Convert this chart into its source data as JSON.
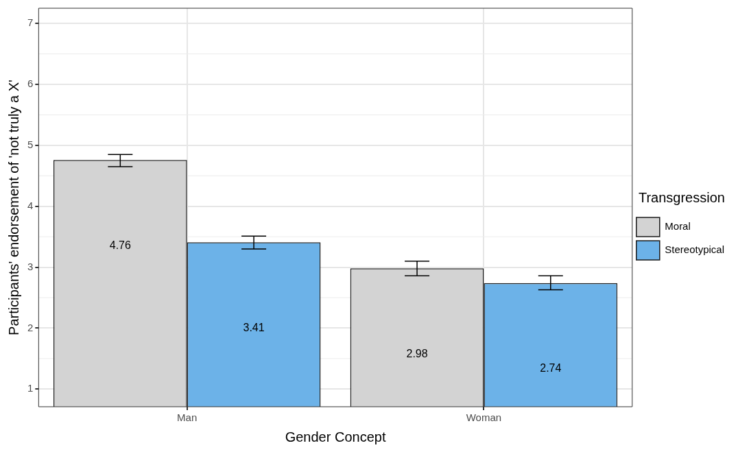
{
  "chart_data": {
    "type": "bar",
    "xlabel": "Gender Concept",
    "ylabel": "Participants' endorsement of 'not truly a X'",
    "legend_title": "Transgression",
    "categories": [
      "Man",
      "Woman"
    ],
    "series": [
      {
        "name": "Moral",
        "color": "#d3d3d3",
        "values": [
          4.76,
          2.98
        ],
        "errors": [
          [
            4.65,
            4.85
          ],
          [
            2.86,
            3.1
          ]
        ]
      },
      {
        "name": "Stereotypical",
        "color": "#6cb2e8",
        "values": [
          3.41,
          2.74
        ],
        "errors": [
          [
            3.3,
            3.51
          ],
          [
            2.63,
            2.86
          ]
        ]
      }
    ],
    "ylim": [
      0.71,
      7.25
    ],
    "yticks": [
      1,
      2,
      3,
      4,
      5,
      6,
      7
    ],
    "grid": true,
    "legend": "right",
    "data_labels": true
  }
}
